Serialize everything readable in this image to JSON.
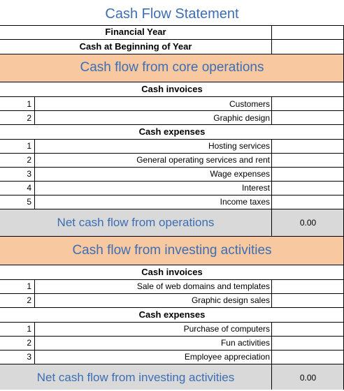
{
  "title": "Cash Flow Statement",
  "header_rows": [
    {
      "label": "Financial Year",
      "value": ""
    },
    {
      "label": "Cash at Beginning of Year",
      "value": ""
    }
  ],
  "sections": [
    {
      "heading": "Cash flow from core operations",
      "groups": [
        {
          "heading": "Cash invoices",
          "items": [
            {
              "n": "1",
              "label": "Customers",
              "value": ""
            },
            {
              "n": "2",
              "label": "Graphic design",
              "value": ""
            }
          ]
        },
        {
          "heading": "Cash expenses",
          "items": [
            {
              "n": "1",
              "label": "Hosting services",
              "value": ""
            },
            {
              "n": "2",
              "label": "General operating services and rent",
              "value": ""
            },
            {
              "n": "3",
              "label": "Wage expenses",
              "value": ""
            },
            {
              "n": "4",
              "label": "Interest",
              "value": ""
            },
            {
              "n": "5",
              "label": "Income taxes",
              "value": ""
            }
          ]
        }
      ],
      "net_label": "Net cash flow from operations",
      "net_value": "0.00"
    },
    {
      "heading": "Cash flow from investing activities",
      "groups": [
        {
          "heading": "Cash invoices",
          "items": [
            {
              "n": "1",
              "label": "Sale of web domains and templates",
              "value": ""
            },
            {
              "n": "2",
              "label": "Graphic design sales",
              "value": ""
            }
          ]
        },
        {
          "heading": "Cash expenses",
          "items": [
            {
              "n": "1",
              "label": "Purchase of computers",
              "value": ""
            },
            {
              "n": "2",
              "label": "Fun activities",
              "value": ""
            },
            {
              "n": "3",
              "label": "Employee appreciation",
              "value": ""
            }
          ]
        }
      ],
      "net_label": "Net cash flow from investing activities",
      "net_value": "0.00"
    }
  ]
}
